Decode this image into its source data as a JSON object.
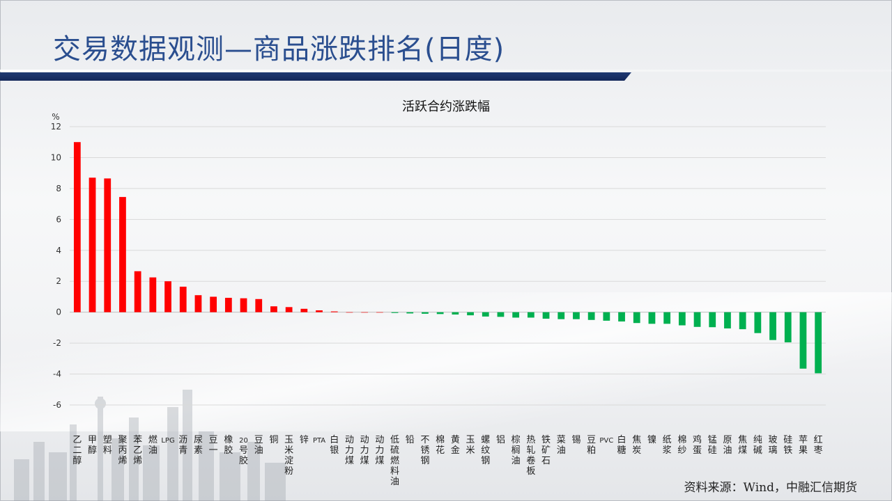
{
  "slide": {
    "title": "交易数据观测—商品涨跌排名(日度)",
    "source": "资料来源：Wind，中融汇信期货"
  },
  "colors": {
    "positive": "#ff0000",
    "negative": "#00b050",
    "title": "#2a4e8f",
    "title_bar": "#1f3a72"
  },
  "chart_data": {
    "type": "bar",
    "title": "活跃合约涨跌幅",
    "ylabel": "%",
    "ylim": [
      -6,
      12
    ],
    "yticks": [
      -6,
      -4,
      -2,
      0,
      2,
      4,
      6,
      8,
      10,
      12
    ],
    "grid": true,
    "categories": [
      "乙二醇",
      "甲醇",
      "塑料",
      "聚丙烯",
      "苯乙烯",
      "燃油",
      "LPG",
      "沥青",
      "尿素",
      "豆一",
      "橡胶",
      "20号胶",
      "豆油",
      "铜",
      "玉米淀粉",
      "锌",
      "PTA",
      "白银",
      "动力煤",
      "动力煤",
      "动力煤",
      "低硫燃料油",
      "铅",
      "不锈钢",
      "棉花",
      "黄金",
      "玉米",
      "螺纹钢",
      "铝",
      "棕榈油",
      "热轧卷板",
      "铁矿石",
      "菜油",
      "锡",
      "豆粕",
      "PVC",
      "白糖",
      "焦炭",
      "镍",
      "纸浆",
      "棉纱",
      "鸡蛋",
      "锰硅",
      "原油",
      "焦煤",
      "纯碱",
      "玻璃",
      "硅铁",
      "苹果",
      "红枣"
    ],
    "values": [
      11.0,
      8.7,
      8.65,
      7.45,
      2.65,
      2.25,
      2.0,
      1.65,
      1.1,
      1.0,
      0.93,
      0.9,
      0.85,
      0.38,
      0.33,
      0.22,
      0.12,
      0.05,
      0.0,
      0.0,
      0.0,
      -0.05,
      -0.08,
      -0.1,
      -0.12,
      -0.15,
      -0.2,
      -0.28,
      -0.3,
      -0.35,
      -0.35,
      -0.42,
      -0.45,
      -0.45,
      -0.5,
      -0.55,
      -0.6,
      -0.7,
      -0.75,
      -0.75,
      -0.85,
      -0.95,
      -0.97,
      -1.05,
      -1.1,
      -1.35,
      -1.8,
      -1.95,
      -3.65,
      -3.95
    ]
  }
}
